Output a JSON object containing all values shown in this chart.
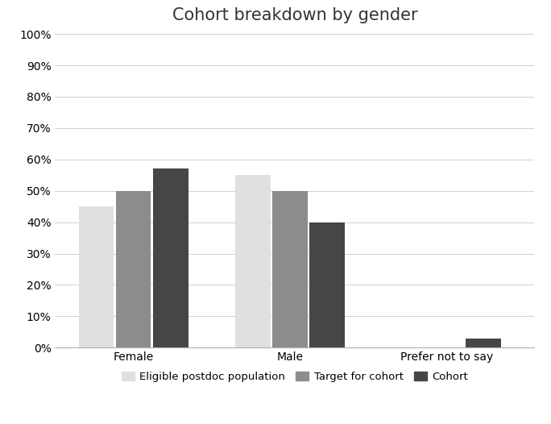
{
  "title": "Cohort breakdown by gender",
  "categories": [
    "Female",
    "Male",
    "Prefer not to say"
  ],
  "series": [
    {
      "name": "Eligible postdoc population",
      "values": [
        0.45,
        0.55,
        0.0
      ],
      "color": "#e0e0e0"
    },
    {
      "name": "Target for cohort",
      "values": [
        0.5,
        0.5,
        0.0
      ],
      "color": "#8c8c8c"
    },
    {
      "name": "Cohort",
      "values": [
        0.57,
        0.4,
        0.03
      ],
      "color": "#464646"
    }
  ],
  "ylim": [
    0,
    1.0
  ],
  "yticks": [
    0.0,
    0.1,
    0.2,
    0.3,
    0.4,
    0.5,
    0.6,
    0.7,
    0.8,
    0.9,
    1.0
  ],
  "bar_width": 0.18,
  "group_positions": [
    0.35,
    1.15,
    1.95
  ],
  "background_color": "#ffffff",
  "grid_color": "#d0d0d0",
  "title_fontsize": 15,
  "tick_fontsize": 10,
  "legend_fontsize": 9.5
}
